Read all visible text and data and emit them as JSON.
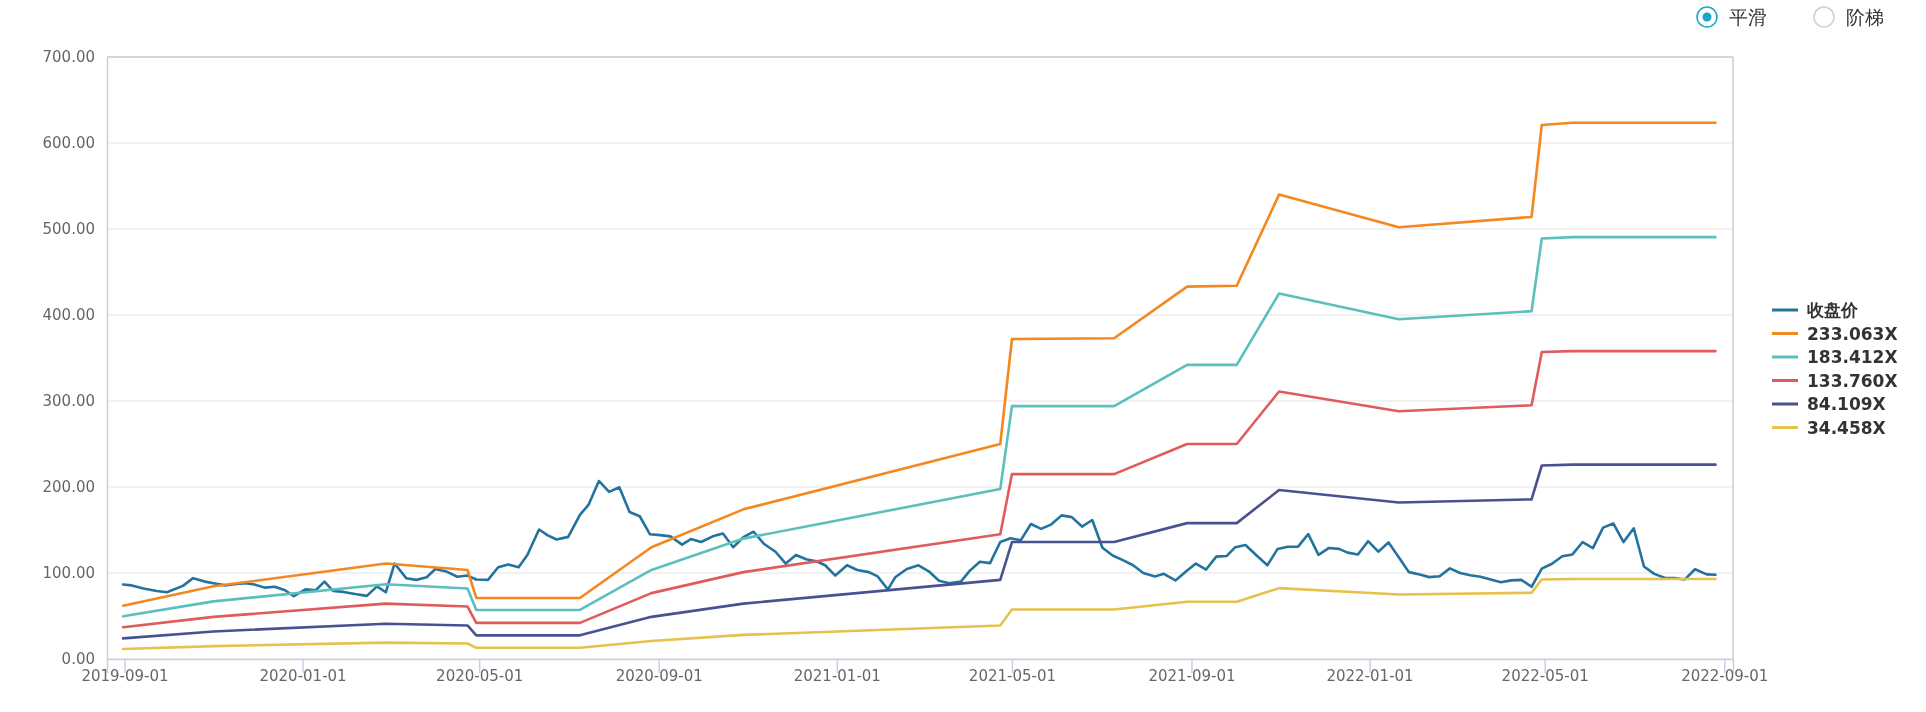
{
  "chart_data": {
    "type": "line",
    "annotations": [
      "平滑",
      "阶梯"
    ],
    "legend": "right",
    "grid": "y",
    "marker": "none",
    "line_style": "solid",
    "xlim": [
      "2019-08-20",
      "2022-09-07"
    ],
    "xticks": [
      "2019-09-01",
      "2020-01-01",
      "2020-05-01",
      "2020-09-01",
      "2021-01-01",
      "2021-05-01",
      "2021-09-01",
      "2022-01-01",
      "2022-05-01",
      "2022-09-01"
    ],
    "ylim": [
      0,
      700
    ],
    "yticks": [
      {
        "value": 0,
        "label": "0.00"
      },
      {
        "value": 100,
        "label": "100.00"
      },
      {
        "value": 200,
        "label": "200.00"
      },
      {
        "value": 300,
        "label": "300.00"
      },
      {
        "value": 400,
        "label": "400.00"
      },
      {
        "value": 500,
        "label": "500.00"
      },
      {
        "value": 600,
        "label": "600.00"
      },
      {
        "value": 700,
        "label": "700.00"
      }
    ],
    "series": [
      {
        "name": "收盘价",
        "color": "#24739f",
        "x": [
          "2019-08-31",
          "2019-09-06",
          "2019-09-14",
          "2019-09-23",
          "2019-09-30",
          "2019-10-11",
          "2019-10-18",
          "2019-10-26",
          "2019-11-01",
          "2019-11-09",
          "2019-11-15",
          "2019-11-23",
          "2019-11-29",
          "2019-12-06",
          "2019-12-13",
          "2019-12-20",
          "2019-12-26",
          "2020-01-03",
          "2020-01-10",
          "2020-01-16",
          "2020-01-22",
          "2020-01-29",
          "2020-02-06",
          "2020-02-14",
          "2020-02-21",
          "2020-02-27",
          "2020-03-04",
          "2020-03-12",
          "2020-03-19",
          "2020-03-26",
          "2020-04-01",
          "2020-04-09",
          "2020-04-16",
          "2020-04-23",
          "2020-04-29",
          "2020-05-07",
          "2020-05-14",
          "2020-05-21",
          "2020-05-28",
          "2020-06-03",
          "2020-06-11",
          "2020-06-17",
          "2020-06-23",
          "2020-07-01",
          "2020-07-09",
          "2020-07-15",
          "2020-07-22",
          "2020-07-29",
          "2020-08-05",
          "2020-08-12",
          "2020-08-19",
          "2020-08-26",
          "2020-09-02",
          "2020-09-09",
          "2020-09-17",
          "2020-09-23",
          "2020-09-30",
          "2020-10-08",
          "2020-10-15",
          "2020-10-22",
          "2020-10-29",
          "2020-11-05",
          "2020-11-12",
          "2020-11-20",
          "2020-11-27",
          "2020-12-04",
          "2020-12-11",
          "2020-12-18",
          "2020-12-24",
          "2020-12-31",
          "2021-01-08",
          "2021-01-15",
          "2021-01-23",
          "2021-01-29",
          "2021-02-05",
          "2021-02-10",
          "2021-02-18",
          "2021-02-26",
          "2021-03-05",
          "2021-03-12",
          "2021-03-19",
          "2021-03-27",
          "2021-04-02",
          "2021-04-09",
          "2021-04-16",
          "2021-04-23",
          "2021-04-30",
          "2021-05-07",
          "2021-05-14",
          "2021-05-21",
          "2021-05-28",
          "2021-06-04",
          "2021-06-11",
          "2021-06-18",
          "2021-06-25",
          "2021-07-02",
          "2021-07-09",
          "2021-07-16",
          "2021-07-23",
          "2021-07-30",
          "2021-08-07",
          "2021-08-13",
          "2021-08-21",
          "2021-08-28",
          "2021-09-04",
          "2021-09-11",
          "2021-09-18",
          "2021-09-25",
          "2021-10-01",
          "2021-10-08",
          "2021-10-16",
          "2021-10-23",
          "2021-10-30",
          "2021-11-06",
          "2021-11-13",
          "2021-11-20",
          "2021-11-27",
          "2021-12-04",
          "2021-12-11",
          "2021-12-17",
          "2021-12-24",
          "2021-12-31",
          "2022-01-07",
          "2022-01-14",
          "2022-01-21",
          "2022-01-28",
          "2022-02-05",
          "2022-02-11",
          "2022-02-18",
          "2022-02-25",
          "2022-03-04",
          "2022-03-11",
          "2022-03-18",
          "2022-03-25",
          "2022-04-01",
          "2022-04-08",
          "2022-04-15",
          "2022-04-22",
          "2022-04-29",
          "2022-05-06",
          "2022-05-13",
          "2022-05-20",
          "2022-05-27",
          "2022-06-03",
          "2022-06-10",
          "2022-06-17",
          "2022-06-24",
          "2022-07-01",
          "2022-07-08",
          "2022-07-15",
          "2022-07-23",
          "2022-07-29",
          "2022-08-05",
          "2022-08-12",
          "2022-08-20",
          "2022-08-26"
        ],
        "values": [
          86.6,
          85.6,
          82,
          79,
          77.6,
          85,
          94,
          90,
          88,
          85.6,
          87,
          88,
          86.6,
          83,
          84,
          80,
          73,
          81,
          80,
          90,
          79,
          78,
          75.5,
          73.4,
          84.5,
          77.6,
          111,
          94,
          92,
          95,
          104.6,
          101.4,
          95.6,
          97,
          92.4,
          92,
          106.7,
          110,
          106.7,
          121,
          150.6,
          143.7,
          139,
          142,
          167.5,
          179.6,
          207,
          194.4,
          199.7,
          171,
          166,
          145,
          144,
          142.6,
          133,
          139.5,
          136,
          142.6,
          146,
          130,
          141.6,
          148,
          134,
          124.7,
          111,
          121,
          116,
          113.6,
          109,
          97,
          109,
          103.5,
          101,
          96,
          81,
          95,
          104.6,
          109,
          102,
          91,
          88,
          90,
          102.5,
          113,
          111.5,
          136,
          140.5,
          138,
          157,
          151.3,
          156.6,
          167,
          165,
          154,
          161.6,
          129.4,
          120.4,
          115,
          109,
          100,
          96,
          99,
          91.4,
          101.4,
          111,
          104,
          119,
          119.7,
          130,
          132.6,
          119.7,
          109,
          128,
          130.6,
          130.7,
          145.2,
          121,
          129,
          128,
          123.7,
          121.6,
          137,
          124.8,
          135.6,
          118.3,
          101,
          98,
          95.2,
          96.3,
          105.4,
          100,
          97.4,
          95.7,
          92.5,
          89.3,
          91.4,
          92,
          84,
          105,
          110.8,
          119.4,
          121.6,
          136,
          129,
          152.8,
          157.6,
          136,
          152,
          107.6,
          99,
          94,
          94,
          92.5,
          104.4,
          98.4,
          98
        ]
      },
      {
        "name": "233.063X",
        "color": "#f5871f",
        "x": [
          "2019-08-31",
          "2019-11-01",
          "2020-02-27",
          "2020-04-23",
          "2020-04-29",
          "2020-07-09",
          "2020-08-27",
          "2020-10-29",
          "2021-04-23",
          "2021-05-01",
          "2021-07-10",
          "2021-08-29",
          "2021-10-02",
          "2021-10-31",
          "2022-01-21",
          "2022-04-22",
          "2022-04-29",
          "2022-05-20",
          "2022-08-26"
        ],
        "values": [
          62,
          84.5,
          111,
          103.5,
          71,
          71,
          130,
          174,
          250,
          372,
          373,
          433,
          434,
          540,
          502,
          514,
          621,
          623.5,
          623.5
        ]
      },
      {
        "name": "183.412X",
        "color": "#5bbfbd",
        "x": [
          "2019-08-31",
          "2019-11-01",
          "2020-02-27",
          "2020-04-23",
          "2020-04-29",
          "2020-07-09",
          "2020-08-27",
          "2020-10-29",
          "2021-04-23",
          "2021-05-01",
          "2021-07-10",
          "2021-08-29",
          "2021-10-02",
          "2021-10-31",
          "2022-01-21",
          "2022-04-22",
          "2022-04-29",
          "2022-05-20",
          "2022-08-26"
        ],
        "values": [
          49.7,
          67,
          87,
          82,
          57,
          57,
          103.5,
          140,
          197.6,
          294,
          294,
          342,
          342,
          425,
          395,
          404.5,
          489,
          490.6,
          490.6
        ]
      },
      {
        "name": "133.760X",
        "color": "#e05b5b",
        "x": [
          "2019-08-31",
          "2019-11-01",
          "2020-02-27",
          "2020-04-23",
          "2020-04-29",
          "2020-07-09",
          "2020-08-27",
          "2020-10-29",
          "2021-04-23",
          "2021-05-01",
          "2021-07-10",
          "2021-08-29",
          "2021-10-02",
          "2021-10-31",
          "2022-01-21",
          "2022-04-22",
          "2022-04-29",
          "2022-05-20",
          "2022-08-26"
        ],
        "values": [
          37,
          49,
          64.4,
          61,
          42,
          42,
          76.6,
          101,
          145,
          215,
          215,
          250,
          250,
          311,
          288,
          295,
          357,
          358,
          358
        ]
      },
      {
        "name": "84.109X",
        "color": "#4a5190",
        "x": [
          "2019-08-31",
          "2019-11-01",
          "2020-02-27",
          "2020-04-23",
          "2020-04-29",
          "2020-07-09",
          "2020-08-27",
          "2020-10-29",
          "2021-04-23",
          "2021-05-01",
          "2021-07-10",
          "2021-08-29",
          "2021-10-02",
          "2021-10-31",
          "2022-01-21",
          "2022-04-22",
          "2022-04-29",
          "2022-05-20",
          "2022-08-26"
        ],
        "values": [
          24,
          32,
          41,
          39,
          27.5,
          27.5,
          49,
          64.4,
          92,
          136,
          136,
          158,
          158,
          196.5,
          182,
          185.6,
          225,
          226,
          226
        ]
      },
      {
        "name": "34.458X",
        "color": "#e6c14e",
        "x": [
          "2019-08-31",
          "2019-11-01",
          "2020-02-27",
          "2020-04-23",
          "2020-04-29",
          "2020-07-09",
          "2020-08-27",
          "2020-10-29",
          "2021-04-23",
          "2021-05-01",
          "2021-07-10",
          "2021-08-29",
          "2021-10-02",
          "2021-10-31",
          "2022-01-21",
          "2022-04-22",
          "2022-04-29",
          "2022-05-20",
          "2022-08-26"
        ],
        "values": [
          11.6,
          15,
          19,
          18,
          13,
          13,
          21,
          28,
          39,
          57.6,
          57.6,
          66.6,
          66.6,
          82.4,
          75,
          77,
          92.5,
          93,
          93
        ]
      }
    ]
  }
}
